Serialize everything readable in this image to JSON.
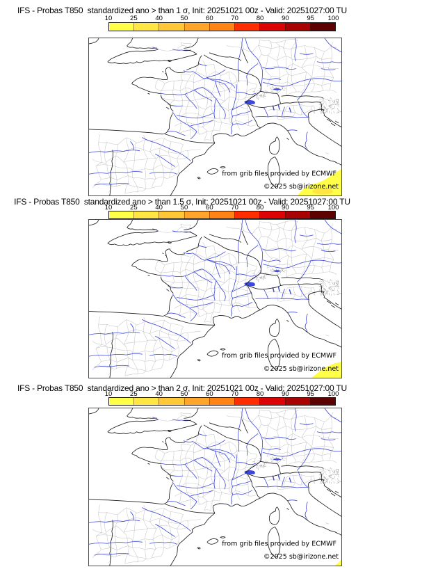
{
  "panels": [
    {
      "title": "IFS - Probas T850  standardized ano > than 1 σ, Init: 20251021 00z - Valid: 20251027:00 TU",
      "threshold_sigma": "1"
    },
    {
      "title": "IFS - Probas T850  standardized ano > than 1.5 σ, Init: 20251021 00z - Valid: 20251027:00 TU",
      "threshold_sigma": "1.5"
    },
    {
      "title": "IFS - Probas T850  standardized ano > than 2 σ, Init: 20251021 00z - Valid: 20251027:00 TU",
      "threshold_sigma": "2"
    }
  ],
  "colorbar": {
    "tick_labels": [
      "10",
      "25",
      "40",
      "50",
      "60",
      "70",
      "80",
      "90",
      "95",
      "100"
    ],
    "segment_colors": [
      "#ffff4a",
      "#ffe645",
      "#ffc838",
      "#ffa52b",
      "#ff8315",
      "#ff2e00",
      "#db0303",
      "#a90202",
      "#5e0101"
    ]
  },
  "map": {
    "credit_line1": "from grib files provided by ECMWF",
    "credit_line2": "©2025 sb@irizone.net",
    "river_color": "#3b46dc",
    "coast_color": "#1c1c1c",
    "admin_color": "#c6c6c6",
    "hatch_color": "#9a9a9a"
  }
}
